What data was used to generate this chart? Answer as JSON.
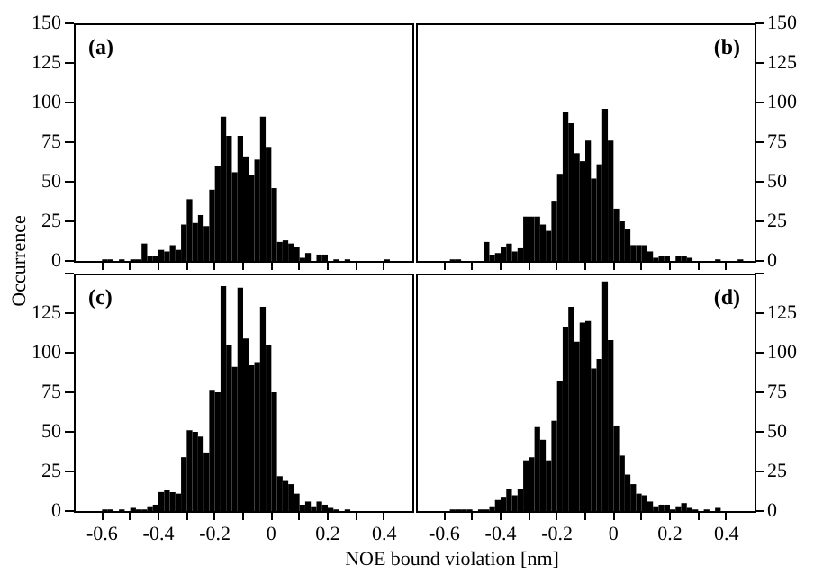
{
  "chart_data": [
    {
      "type": "histogram",
      "title": "(a)",
      "ylabel": "Occurrence",
      "color": "#000000",
      "bins": [
        -0.7,
        -0.68,
        -0.66,
        -0.64,
        -0.62,
        -0.6,
        -0.58,
        -0.56,
        -0.54,
        -0.52,
        -0.5,
        -0.48,
        -0.46,
        -0.44,
        -0.42,
        -0.4,
        -0.38,
        -0.36,
        -0.34,
        -0.32,
        -0.3,
        -0.28,
        -0.26,
        -0.24,
        -0.22,
        -0.2,
        -0.18,
        -0.16,
        -0.14,
        -0.12,
        -0.1,
        -0.08,
        -0.06,
        -0.04,
        -0.02,
        0,
        0.02,
        0.04,
        0.06,
        0.08,
        0.1,
        0.12,
        0.14,
        0.16,
        0.18,
        0.2,
        0.22,
        0.24,
        0.26,
        0.28,
        0.3,
        0.32,
        0.34,
        0.36,
        0.38,
        0.4,
        0.42,
        0.44,
        0.46,
        0.48,
        0.5
      ],
      "values": [
        0,
        0,
        0,
        0,
        0,
        1,
        1,
        0,
        1,
        0,
        1,
        1,
        11,
        3,
        3,
        7,
        6,
        10,
        7,
        23,
        39,
        24,
        29,
        22,
        45,
        60,
        91,
        79,
        56,
        79,
        66,
        54,
        64,
        91,
        72,
        46,
        12,
        13,
        11,
        9,
        2,
        5,
        0,
        4,
        4,
        0,
        1,
        0,
        1,
        0,
        0,
        0,
        0,
        0,
        0,
        1,
        0,
        0,
        0,
        0
      ],
      "xlim": [
        -0.7,
        0.5
      ],
      "xticks": [
        -0.6,
        {
          "value": -0.5,
          "label": null
        },
        -0.4,
        {
          "value": -0.3,
          "label": null
        },
        -0.2,
        {
          "value": -0.1,
          "label": null
        },
        0,
        {
          "value": 0.1,
          "label": null
        },
        0.2,
        {
          "value": 0.3,
          "label": null
        },
        0.4
      ],
      "ylim": [
        0,
        150
      ],
      "yticks": [
        0,
        25,
        50,
        75,
        100,
        125,
        150
      ],
      "tick_labels": "y"
    },
    {
      "type": "histogram",
      "title": "(b)",
      "color": "#000000",
      "bins": [
        -0.7,
        -0.68,
        -0.66,
        -0.64,
        -0.62,
        -0.6,
        -0.58,
        -0.56,
        -0.54,
        -0.52,
        -0.5,
        -0.48,
        -0.46,
        -0.44,
        -0.42,
        -0.4,
        -0.38,
        -0.36,
        -0.34,
        -0.32,
        -0.3,
        -0.28,
        -0.26,
        -0.24,
        -0.22,
        -0.2,
        -0.18,
        -0.16,
        -0.14,
        -0.12,
        -0.1,
        -0.08,
        -0.06,
        -0.04,
        -0.02,
        0,
        0.02,
        0.04,
        0.06,
        0.08,
        0.1,
        0.12,
        0.14,
        0.16,
        0.18,
        0.2,
        0.22,
        0.24,
        0.26,
        0.28,
        0.3,
        0.32,
        0.34,
        0.36,
        0.38,
        0.4,
        0.42,
        0.44,
        0.46,
        0.48,
        0.5
      ],
      "values": [
        0,
        0,
        0,
        0,
        0,
        0,
        1,
        1,
        0,
        0,
        0,
        0,
        12,
        4,
        5,
        9,
        11,
        6,
        8,
        28,
        28,
        28,
        23,
        19,
        38,
        55,
        94,
        87,
        68,
        63,
        76,
        52,
        61,
        96,
        76,
        33,
        25,
        20,
        10,
        10,
        10,
        6,
        2,
        3,
        3,
        0,
        3,
        3,
        2,
        0,
        0,
        0,
        0,
        1,
        0,
        0,
        0,
        1,
        0,
        0
      ],
      "xlim": [
        -0.7,
        0.5
      ],
      "xticks": [
        -0.6,
        {
          "value": -0.5,
          "label": null
        },
        -0.4,
        {
          "value": -0.3,
          "label": null
        },
        -0.2,
        {
          "value": -0.1,
          "label": null
        },
        0,
        {
          "value": 0.1,
          "label": null
        },
        0.2,
        {
          "value": 0.3,
          "label": null
        },
        0.4
      ],
      "ylim": [
        0,
        150
      ],
      "yticks": [
        0,
        25,
        50,
        75,
        100,
        125,
        150
      ],
      "tick_labels": "y"
    },
    {
      "type": "histogram",
      "title": "(c)",
      "xlabel": "NOE bound violation [nm]",
      "color": "#000000",
      "bins": [
        -0.7,
        -0.68,
        -0.66,
        -0.64,
        -0.62,
        -0.6,
        -0.58,
        -0.56,
        -0.54,
        -0.52,
        -0.5,
        -0.48,
        -0.46,
        -0.44,
        -0.42,
        -0.4,
        -0.38,
        -0.36,
        -0.34,
        -0.32,
        -0.3,
        -0.28,
        -0.26,
        -0.24,
        -0.22,
        -0.2,
        -0.18,
        -0.16,
        -0.14,
        -0.12,
        -0.1,
        -0.08,
        -0.06,
        -0.04,
        -0.02,
        0,
        0.02,
        0.04,
        0.06,
        0.08,
        0.1,
        0.12,
        0.14,
        0.16,
        0.18,
        0.2,
        0.22,
        0.24,
        0.26,
        0.28,
        0.3,
        0.32,
        0.34,
        0.36,
        0.38,
        0.4,
        0.42,
        0.44,
        0.46,
        0.48,
        0.5
      ],
      "values": [
        0,
        0,
        0,
        0,
        0,
        1,
        1,
        0,
        1,
        0,
        2,
        1,
        1,
        3,
        4,
        12,
        13,
        12,
        11,
        34,
        51,
        50,
        47,
        37,
        76,
        75,
        142,
        105,
        91,
        141,
        109,
        92,
        94,
        129,
        105,
        75,
        22,
        19,
        17,
        11,
        4,
        6,
        3,
        6,
        4,
        2,
        1,
        0,
        1,
        0,
        0,
        0,
        0,
        0,
        0,
        0,
        0,
        0,
        0,
        0
      ],
      "xlim": [
        -0.7,
        0.5
      ],
      "xticks": [
        -0.6,
        {
          "value": -0.5,
          "label": null
        },
        -0.4,
        {
          "value": -0.3,
          "label": null
        },
        -0.2,
        {
          "value": -0.1,
          "label": null
        },
        0,
        {
          "value": 0.1,
          "label": null
        },
        0.2,
        {
          "value": 0.3,
          "label": null
        },
        0.4
      ],
      "ylim": [
        0,
        150
      ],
      "yticks": [
        0,
        25,
        50,
        75,
        100,
        125,
        {
          "value": 150,
          "label": null
        }
      ]
    },
    {
      "type": "histogram",
      "title": "(d)",
      "color": "#000000",
      "bins": [
        -0.7,
        -0.68,
        -0.66,
        -0.64,
        -0.62,
        -0.6,
        -0.58,
        -0.56,
        -0.54,
        -0.52,
        -0.5,
        -0.48,
        -0.46,
        -0.44,
        -0.42,
        -0.4,
        -0.38,
        -0.36,
        -0.34,
        -0.32,
        -0.3,
        -0.28,
        -0.26,
        -0.24,
        -0.22,
        -0.2,
        -0.18,
        -0.16,
        -0.14,
        -0.12,
        -0.1,
        -0.08,
        -0.06,
        -0.04,
        -0.02,
        0,
        0.02,
        0.04,
        0.06,
        0.08,
        0.1,
        0.12,
        0.14,
        0.16,
        0.18,
        0.2,
        0.22,
        0.24,
        0.26,
        0.28,
        0.3,
        0.32,
        0.34,
        0.36,
        0.38,
        0.4,
        0.42,
        0.44,
        0.46,
        0.48,
        0.5
      ],
      "values": [
        0,
        0,
        0,
        0,
        0,
        0,
        1,
        1,
        1,
        1,
        0,
        1,
        1,
        3,
        7,
        9,
        14,
        10,
        14,
        32,
        34,
        53,
        45,
        32,
        57,
        82,
        116,
        129,
        107,
        119,
        120,
        90,
        96,
        145,
        108,
        54,
        35,
        23,
        17,
        11,
        10,
        6,
        3,
        4,
        4,
        1,
        3,
        5,
        2,
        1,
        0,
        1,
        0,
        2,
        0,
        0,
        0,
        0,
        0,
        0
      ],
      "xlim": [
        -0.7,
        0.5
      ],
      "xticks": [
        -0.6,
        {
          "value": -0.5,
          "label": null
        },
        -0.4,
        {
          "value": -0.3,
          "label": null
        },
        -0.2,
        {
          "value": -0.1,
          "label": null
        },
        0,
        {
          "value": 0.1,
          "label": null
        },
        0.2,
        {
          "value": 0.3,
          "label": null
        },
        0.4
      ],
      "ylim": [
        0,
        150
      ],
      "yticks": [
        0,
        25,
        50,
        75,
        100,
        125,
        {
          "value": 150,
          "label": null
        }
      ]
    }
  ]
}
